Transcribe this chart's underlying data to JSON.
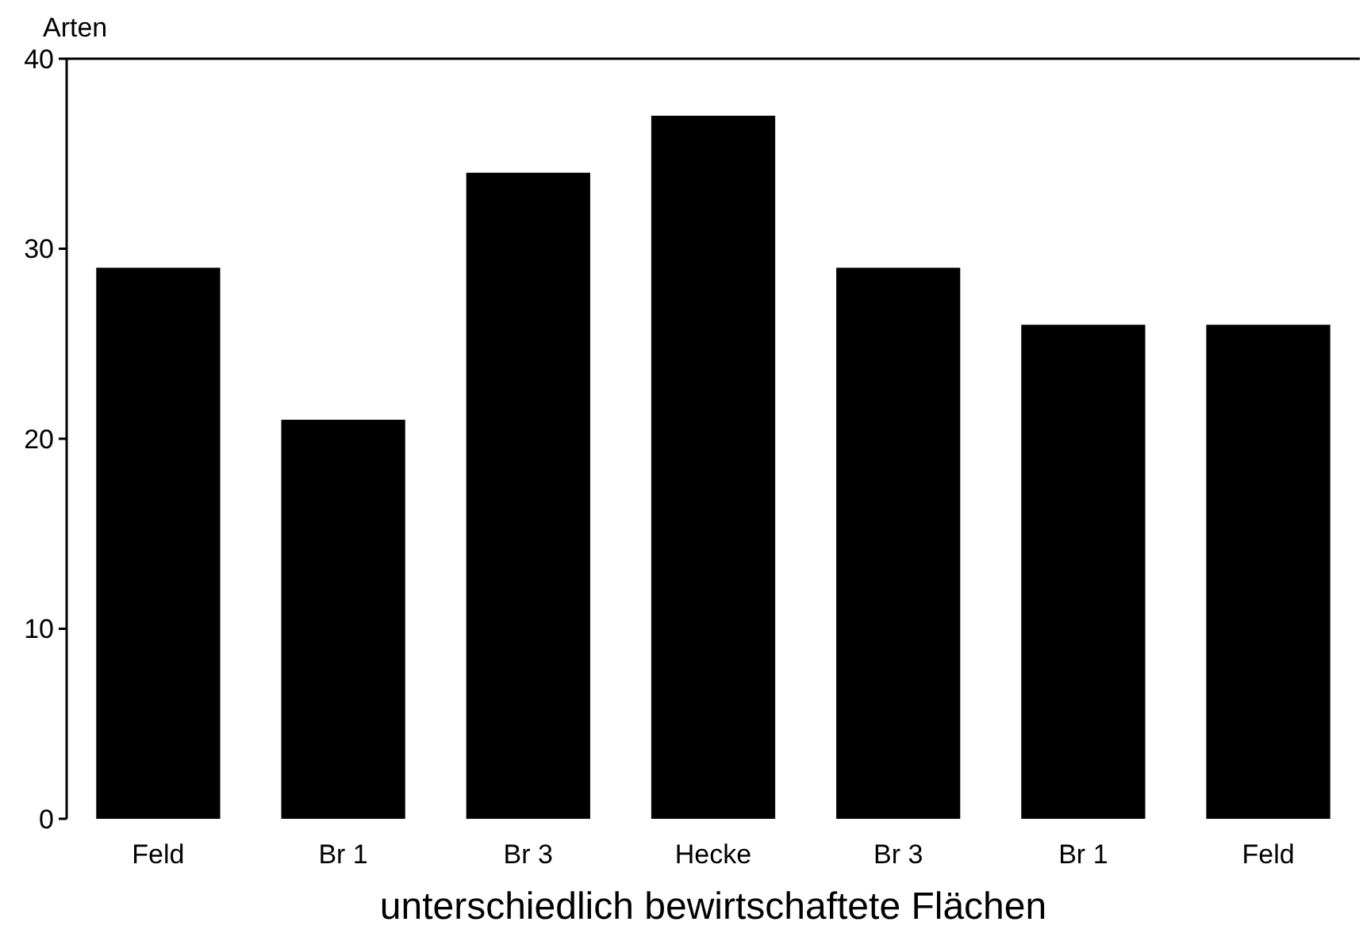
{
  "chart_data": {
    "type": "bar",
    "ylabel": "Arten",
    "xlabel": "unterschiedlich bewirtschaftete Flächen",
    "categories": [
      "Feld",
      "Br 1",
      "Br 3",
      "Hecke",
      "Br 3",
      "Br 1",
      "Feld"
    ],
    "values": [
      29,
      21,
      34,
      37,
      29,
      26,
      26
    ],
    "color": "#000000",
    "ylim": [
      0,
      40
    ],
    "yticks": [
      0,
      10,
      20,
      30,
      40
    ],
    "grid": false
  }
}
